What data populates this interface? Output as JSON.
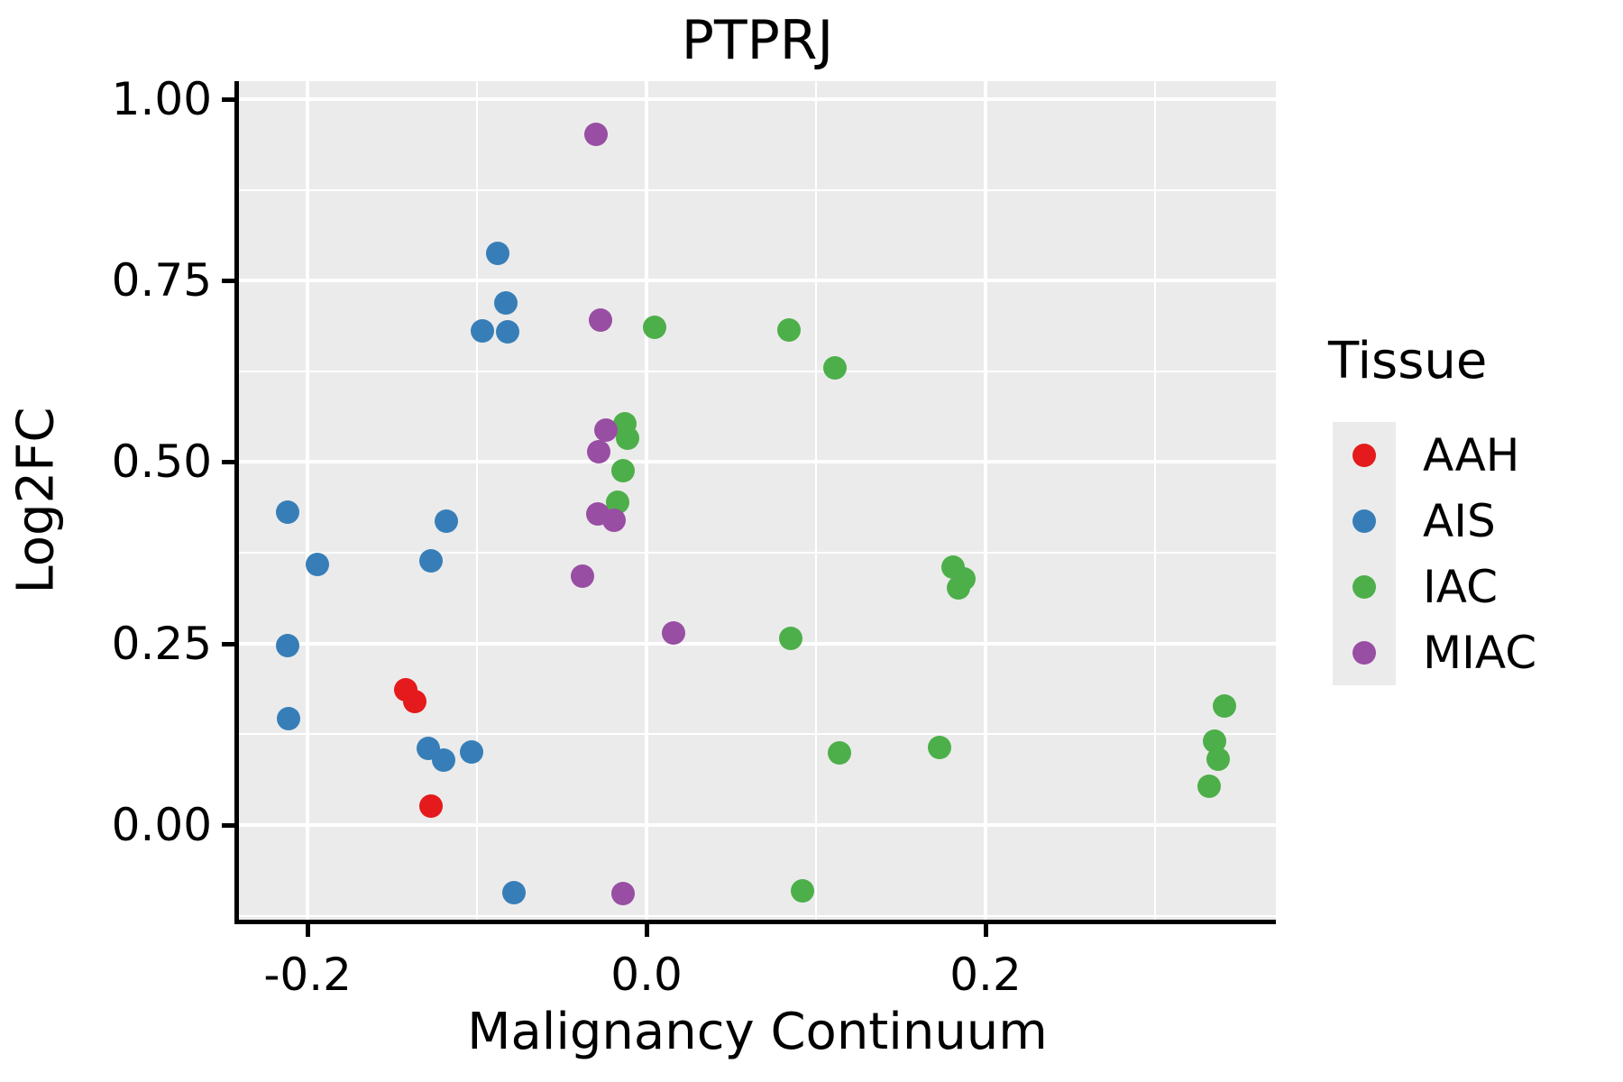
{
  "title": "PTPRJ",
  "panel": {
    "background": "#EBEBEB",
    "grid_color": "#FFFFFF",
    "axis_color": "#000000"
  },
  "axes": {
    "x": {
      "label": "Malignancy Continuum",
      "ticks": [
        {
          "value": -0.2,
          "label": "-0.2"
        },
        {
          "value": 0.0,
          "label": "0.0"
        },
        {
          "value": 0.2,
          "label": "0.2"
        }
      ],
      "minor_gridlines": [
        -0.1,
        0.1,
        0.3
      ]
    },
    "y": {
      "label": "Log2FC",
      "ticks": [
        {
          "value": 0.0,
          "label": "0.00"
        },
        {
          "value": 0.25,
          "label": "0.25"
        },
        {
          "value": 0.5,
          "label": "0.50"
        },
        {
          "value": 0.75,
          "label": "0.75"
        },
        {
          "value": 1.0,
          "label": "1.00"
        }
      ],
      "minor_gridlines": [
        -0.125,
        0.125,
        0.375,
        0.625,
        0.875
      ]
    }
  },
  "legend": {
    "title": "Tissue",
    "entries": [
      {
        "label": "AAH",
        "color": "#E41A1C"
      },
      {
        "label": "AIS",
        "color": "#377EB8"
      },
      {
        "label": "IAC",
        "color": "#4DAF4A"
      },
      {
        "label": "MIAC",
        "color": "#984EA3"
      }
    ]
  },
  "chart_data": {
    "type": "scatter",
    "title": "PTPRJ",
    "xlabel": "Malignancy Continuum",
    "ylabel": "Log2FC",
    "xlim": [
      -0.2405,
      0.3713
    ],
    "ylim": [
      -0.1304,
      1.0248
    ],
    "grid": true,
    "legend_title": "Tissue",
    "legend_position": "right",
    "series": [
      {
        "name": "AAH",
        "color": "#E41A1C",
        "points": [
          [
            -0.142,
            0.186
          ],
          [
            -0.137,
            0.17
          ],
          [
            -0.127,
            0.026
          ]
        ]
      },
      {
        "name": "AIS",
        "color": "#377EB8",
        "points": [
          [
            -0.212,
            0.431
          ],
          [
            -0.118,
            0.419
          ],
          [
            -0.194,
            0.359
          ],
          [
            -0.127,
            0.364
          ],
          [
            -0.212,
            0.247
          ],
          [
            -0.211,
            0.147
          ],
          [
            -0.088,
            0.788
          ],
          [
            -0.083,
            0.719
          ],
          [
            -0.097,
            0.681
          ],
          [
            -0.082,
            0.679
          ],
          [
            -0.129,
            0.106
          ],
          [
            -0.12,
            0.089
          ],
          [
            -0.103,
            0.101
          ],
          [
            -0.078,
            -0.093
          ]
        ]
      },
      {
        "name": "IAC",
        "color": "#4DAF4A",
        "points": [
          [
            0.005,
            0.686
          ],
          [
            -0.013,
            0.553
          ],
          [
            -0.011,
            0.533
          ],
          [
            -0.014,
            0.488
          ],
          [
            -0.017,
            0.445
          ],
          [
            0.084,
            0.682
          ],
          [
            0.111,
            0.63
          ],
          [
            0.085,
            0.257
          ],
          [
            0.181,
            0.355
          ],
          [
            0.187,
            0.339
          ],
          [
            0.184,
            0.327
          ],
          [
            0.114,
            0.099
          ],
          [
            0.173,
            0.107
          ],
          [
            0.092,
            -0.091
          ],
          [
            0.341,
            0.164
          ],
          [
            0.335,
            0.116
          ],
          [
            0.337,
            0.091
          ],
          [
            0.332,
            0.053
          ]
        ]
      },
      {
        "name": "MIAC",
        "color": "#984EA3",
        "points": [
          [
            -0.03,
            0.952
          ],
          [
            -0.027,
            0.696
          ],
          [
            -0.024,
            0.544
          ],
          [
            -0.028,
            0.514
          ],
          [
            -0.029,
            0.429
          ],
          [
            -0.019,
            0.42
          ],
          [
            -0.038,
            0.343
          ],
          [
            0.016,
            0.265
          ],
          [
            -0.014,
            -0.094
          ]
        ]
      }
    ]
  }
}
